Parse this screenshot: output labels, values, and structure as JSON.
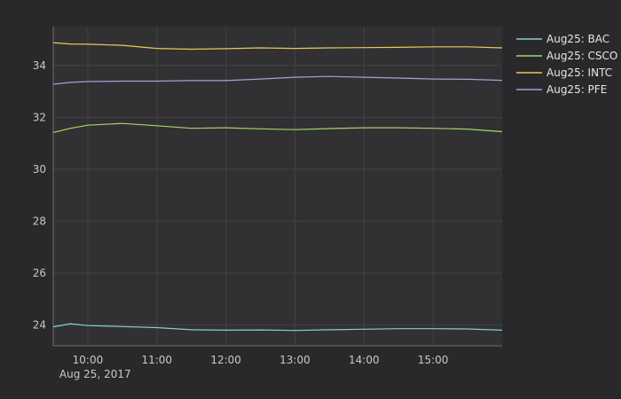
{
  "chart_data": {
    "type": "line",
    "title": "",
    "xlabel": "",
    "ylabel": "",
    "x_date_label": "Aug 25, 2017",
    "x_range": [
      "09:30",
      "16:00"
    ],
    "ylim": [
      23.2,
      35.5
    ],
    "x_ticks": [
      "10:00",
      "11:00",
      "12:00",
      "13:00",
      "14:00",
      "15:00"
    ],
    "y_ticks": [
      24,
      26,
      28,
      30,
      32,
      34
    ],
    "grid": true,
    "legend_position": "top-right",
    "colors": {
      "background": "#29292b",
      "plot_background": "#313133",
      "grid": "#434345",
      "axis": "#707070"
    },
    "series": [
      {
        "name": "Aug25: BAC",
        "color": "#7fd1d6",
        "points": [
          [
            "09:30",
            23.93
          ],
          [
            "09:45",
            24.05
          ],
          [
            "10:00",
            23.98
          ],
          [
            "10:30",
            23.94
          ],
          [
            "11:00",
            23.9
          ],
          [
            "11:30",
            23.82
          ],
          [
            "12:00",
            23.8
          ],
          [
            "12:30",
            23.81
          ],
          [
            "13:00",
            23.79
          ],
          [
            "13:30",
            23.82
          ],
          [
            "14:00",
            23.84
          ],
          [
            "14:30",
            23.86
          ],
          [
            "15:00",
            23.86
          ],
          [
            "15:30",
            23.85
          ],
          [
            "16:00",
            23.8
          ]
        ]
      },
      {
        "name": "Aug25: CSCO",
        "color": "#a4d46a",
        "points": [
          [
            "09:30",
            31.42
          ],
          [
            "09:45",
            31.58
          ],
          [
            "10:00",
            31.7
          ],
          [
            "10:30",
            31.77
          ],
          [
            "11:00",
            31.68
          ],
          [
            "11:30",
            31.58
          ],
          [
            "12:00",
            31.6
          ],
          [
            "12:30",
            31.56
          ],
          [
            "13:00",
            31.53
          ],
          [
            "13:30",
            31.57
          ],
          [
            "14:00",
            31.6
          ],
          [
            "14:30",
            31.6
          ],
          [
            "15:00",
            31.58
          ],
          [
            "15:30",
            31.55
          ],
          [
            "16:00",
            31.45
          ]
        ]
      },
      {
        "name": "Aug25: INTC",
        "color": "#e8c95a",
        "points": [
          [
            "09:30",
            34.88
          ],
          [
            "09:45",
            34.83
          ],
          [
            "10:00",
            34.82
          ],
          [
            "10:30",
            34.78
          ],
          [
            "11:00",
            34.66
          ],
          [
            "11:30",
            34.63
          ],
          [
            "12:00",
            34.65
          ],
          [
            "12:30",
            34.68
          ],
          [
            "13:00",
            34.66
          ],
          [
            "13:30",
            34.68
          ],
          [
            "14:00",
            34.69
          ],
          [
            "14:30",
            34.7
          ],
          [
            "15:00",
            34.72
          ],
          [
            "15:30",
            34.72
          ],
          [
            "16:00",
            34.68
          ]
        ]
      },
      {
        "name": "Aug25: PFE",
        "color": "#a99ce0",
        "points": [
          [
            "09:30",
            33.28
          ],
          [
            "09:45",
            33.35
          ],
          [
            "10:00",
            33.38
          ],
          [
            "10:30",
            33.4
          ],
          [
            "11:00",
            33.4
          ],
          [
            "11:30",
            33.42
          ],
          [
            "12:00",
            33.42
          ],
          [
            "12:30",
            33.48
          ],
          [
            "13:00",
            33.55
          ],
          [
            "13:30",
            33.58
          ],
          [
            "14:00",
            33.55
          ],
          [
            "14:30",
            33.52
          ],
          [
            "15:00",
            33.48
          ],
          [
            "15:30",
            33.47
          ],
          [
            "16:00",
            33.43
          ]
        ]
      }
    ]
  }
}
